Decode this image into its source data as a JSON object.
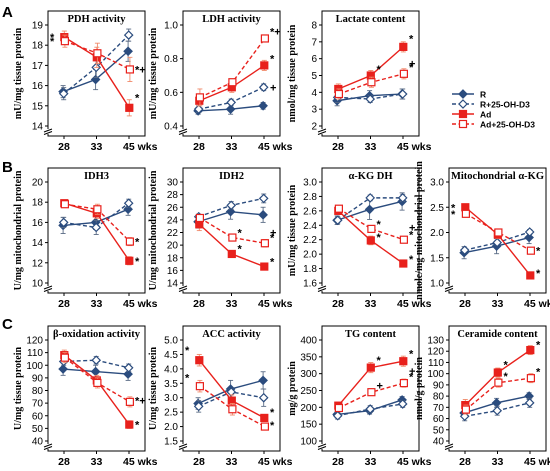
{
  "section_labels": [
    "A",
    "B",
    "C"
  ],
  "legend": {
    "entries": [
      {
        "label": "R",
        "color": "#2b4c7e",
        "dash": false,
        "marker": "diamond",
        "filled": true
      },
      {
        "label": "R+25-OH-D3",
        "color": "#2b4c7e",
        "dash": true,
        "marker": "diamond",
        "filled": false
      },
      {
        "label": "Ad",
        "color": "#e8211c",
        "dash": false,
        "marker": "square",
        "filled": true
      },
      {
        "label": "Ad+25-OH-D3",
        "color": "#e8211c",
        "dash": true,
        "marker": "square",
        "filled": false
      }
    ]
  },
  "chart_data": [
    {
      "type": "line",
      "title": "PDH activity",
      "ylabel": "mU/mg tissue protein",
      "x": [
        "28",
        "33",
        "45 wks"
      ],
      "ylim": [
        14,
        19
      ],
      "yticks": [
        14,
        15,
        16,
        17,
        18,
        19
      ],
      "axis_break": true,
      "series": [
        {
          "name": "R",
          "values": [
            15.7,
            16.3,
            17.7
          ],
          "err": [
            0.3,
            0.5,
            0.5
          ]
        },
        {
          "name": "R+25-OH-D3",
          "values": [
            15.6,
            16.9,
            18.5
          ],
          "err": [
            0.3,
            0.5,
            0.3
          ]
        },
        {
          "name": "Ad",
          "values": [
            18.4,
            17.4,
            14.9
          ],
          "err": [
            0.3,
            0.5,
            0.4
          ]
        },
        {
          "name": "Ad+25-OH-D3",
          "values": [
            18.2,
            17.6,
            16.8
          ],
          "err": [
            0.3,
            0.5,
            0.6
          ]
        }
      ],
      "annotations": [
        {
          "text": "*",
          "x": 0,
          "y": 18.4
        },
        {
          "text": "*",
          "x": 0,
          "y": 18.2
        },
        {
          "text": "*+",
          "x": 2,
          "y": 16.8
        },
        {
          "text": "*",
          "x": 2,
          "y": 15.4
        }
      ]
    },
    {
      "type": "line",
      "title": "LDH activity",
      "ylabel": "mU/mg tissue protein",
      "x": [
        "28",
        "33",
        "45 wks"
      ],
      "ylim": [
        0.4,
        1.0
      ],
      "yticks": [
        0.4,
        0.6,
        0.8,
        1.0
      ],
      "axis_break": true,
      "series": [
        {
          "name": "R",
          "values": [
            0.49,
            0.5,
            0.52
          ],
          "err": [
            0.02,
            0.03,
            0.02
          ]
        },
        {
          "name": "R+25-OH-D3",
          "values": [
            0.5,
            0.54,
            0.63
          ],
          "err": [
            0.02,
            0.02,
            0.02
          ]
        },
        {
          "name": "Ad",
          "values": [
            0.55,
            0.63,
            0.76
          ],
          "err": [
            0.03,
            0.03,
            0.03
          ]
        },
        {
          "name": "Ad+25-OH-D3",
          "values": [
            0.57,
            0.66,
            0.92
          ],
          "err": [
            0.05,
            0.02,
            0.02
          ]
        }
      ],
      "annotations": [
        {
          "text": "*+",
          "x": 2,
          "y": 0.96
        },
        {
          "text": "*",
          "x": 2,
          "y": 0.8
        },
        {
          "text": "+",
          "x": 2,
          "y": 0.63
        }
      ]
    },
    {
      "type": "line",
      "title": "Lactate content",
      "ylabel": "nmol/mg tissue protein",
      "x": [
        "28",
        "33",
        "45 wks"
      ],
      "ylim": [
        2,
        8
      ],
      "yticks": [
        2,
        3,
        4,
        5,
        6,
        7,
        8
      ],
      "axis_break": true,
      "series": [
        {
          "name": "R",
          "values": [
            3.5,
            3.8,
            3.9
          ],
          "err": [
            0.3,
            0.3,
            0.3
          ]
        },
        {
          "name": "R+25-OH-D3",
          "values": [
            3.7,
            3.6,
            3.9
          ],
          "err": [
            0.3,
            0.2,
            0.3
          ]
        },
        {
          "name": "Ad",
          "values": [
            4.2,
            5.0,
            6.7
          ],
          "err": [
            0.3,
            0.3,
            0.3
          ]
        },
        {
          "name": "Ad+25-OH-D3",
          "values": [
            3.9,
            4.6,
            5.1
          ],
          "err": [
            0.3,
            0.3,
            0.3
          ]
        }
      ],
      "annotations": [
        {
          "text": "*",
          "x": 1,
          "y": 5.4
        },
        {
          "text": "*",
          "x": 2,
          "y": 7.2
        },
        {
          "text": "+",
          "x": 2,
          "y": 5.7
        },
        {
          "text": "*",
          "x": 2,
          "y": 5.5
        }
      ]
    },
    {
      "type": "line",
      "title": "IDH3",
      "ylabel": "U/mg mitochondrial protein",
      "x": [
        "28",
        "33",
        "45 wks"
      ],
      "ylim": [
        10,
        20
      ],
      "yticks": [
        10,
        12,
        14,
        16,
        18,
        20
      ],
      "axis_break": true,
      "series": [
        {
          "name": "R",
          "values": [
            15.7,
            16.0,
            17.3
          ],
          "err": [
            0.8,
            0.7,
            0.6
          ]
        },
        {
          "name": "R+25-OH-D3",
          "values": [
            16.0,
            15.5,
            17.9
          ],
          "err": [
            0.5,
            0.7,
            0.4
          ]
        },
        {
          "name": "Ad",
          "values": [
            17.9,
            16.9,
            12.2
          ],
          "err": [
            0.3,
            0.5,
            0.4
          ]
        },
        {
          "name": "Ad+25-OH-D3",
          "values": [
            17.8,
            17.3,
            14.1
          ],
          "err": [
            0.3,
            0.5,
            0.4
          ]
        }
      ],
      "annotations": [
        {
          "text": "*",
          "x": 2,
          "y": 14.1
        },
        {
          "text": "*",
          "x": 2,
          "y": 12.2
        }
      ]
    },
    {
      "type": "line",
      "title": "IDH2",
      "ylabel": "U/mg mitochondrial protein",
      "x": [
        "28",
        "33",
        "45 wks"
      ],
      "ylim": [
        14,
        30
      ],
      "yticks": [
        14,
        16,
        18,
        20,
        22,
        24,
        26,
        28,
        30
      ],
      "axis_break": true,
      "series": [
        {
          "name": "R",
          "values": [
            23.7,
            25.3,
            24.8
          ],
          "err": [
            1.0,
            1.2,
            1.2
          ]
        },
        {
          "name": "R+25-OH-D3",
          "values": [
            24.5,
            26.3,
            27.4
          ],
          "err": [
            0.4,
            0.6,
            0.7
          ]
        },
        {
          "name": "Ad",
          "values": [
            23.3,
            18.6,
            16.6
          ],
          "err": [
            1.0,
            0.4,
            0.4
          ]
        },
        {
          "name": "Ad+25-OH-D3",
          "values": [
            24.3,
            21.2,
            20.3
          ],
          "err": [
            0.4,
            0.5,
            0.6
          ]
        }
      ],
      "annotations": [
        {
          "text": "*",
          "x": 1,
          "y": 22.0
        },
        {
          "text": "*",
          "x": 1,
          "y": 19.5
        },
        {
          "text": "+",
          "x": 2,
          "y": 22.0
        },
        {
          "text": "*",
          "x": 2,
          "y": 21.2
        },
        {
          "text": "*",
          "x": 2,
          "y": 17.4
        }
      ]
    },
    {
      "type": "line",
      "title": "α-KG DH",
      "ylabel": "mU/mg tissue protein",
      "x": [
        "28",
        "33",
        "45 wks"
      ],
      "ylim": [
        1.6,
        3.0
      ],
      "yticks": [
        1.6,
        1.8,
        2.0,
        2.2,
        2.4,
        2.6,
        2.8,
        3.0
      ],
      "axis_break": true,
      "series": [
        {
          "name": "R",
          "values": [
            2.47,
            2.62,
            2.73
          ],
          "err": [
            0.06,
            0.14,
            0.12
          ]
        },
        {
          "name": "R+25-OH-D3",
          "values": [
            2.47,
            2.78,
            2.78
          ],
          "err": [
            0.05,
            0.04,
            0.05
          ]
        },
        {
          "name": "Ad",
          "values": [
            2.6,
            2.19,
            1.87
          ],
          "err": [
            0.05,
            0.06,
            0.04
          ]
        },
        {
          "name": "Ad+25-OH-D3",
          "values": [
            2.63,
            2.35,
            2.2
          ],
          "err": [
            0.04,
            0.04,
            0.04
          ]
        }
      ],
      "annotations": [
        {
          "text": "*",
          "x": 1,
          "y": 2.42
        },
        {
          "text": "*",
          "x": 1,
          "y": 2.24
        },
        {
          "text": "+",
          "x": 2,
          "y": 2.37
        },
        {
          "text": "*",
          "x": 2,
          "y": 2.27
        },
        {
          "text": "*",
          "x": 2,
          "y": 1.93
        }
      ]
    },
    {
      "type": "line",
      "title": "Mitochondrial α-KG",
      "ylabel": "nmole/mg mitochondrial protein",
      "x": [
        "28",
        "33",
        "45 wks"
      ],
      "ylim": [
        1.0,
        3.0
      ],
      "yticks": [
        1.0,
        1.5,
        2.0,
        2.5,
        3.0
      ],
      "axis_break": true,
      "series": [
        {
          "name": "R",
          "values": [
            1.6,
            1.73,
            1.9
          ],
          "err": [
            0.12,
            0.15,
            0.12
          ]
        },
        {
          "name": "R+25-OH-D3",
          "values": [
            1.65,
            1.8,
            2.01
          ],
          "err": [
            0.05,
            0.05,
            0.05
          ]
        },
        {
          "name": "Ad",
          "values": [
            2.5,
            1.96,
            1.15
          ],
          "err": [
            0.05,
            0.08,
            0.05
          ]
        },
        {
          "name": "Ad+25-OH-D3",
          "values": [
            2.37,
            2.0,
            1.64
          ],
          "err": [
            0.05,
            0.05,
            0.05
          ]
        }
      ],
      "annotations": [
        {
          "text": "*",
          "x": 0,
          "y": 2.5
        },
        {
          "text": "*",
          "x": 0,
          "y": 2.37
        },
        {
          "text": "*",
          "x": 2,
          "y": 1.64
        },
        {
          "text": "*",
          "x": 2,
          "y": 1.2
        }
      ]
    },
    {
      "type": "line",
      "title": "β-oxidation activity",
      "ylabel": "U/mg tissue protein",
      "x": [
        "28",
        "33",
        "45 wks"
      ],
      "ylim": [
        40,
        120
      ],
      "yticks": [
        40,
        50,
        60,
        70,
        80,
        90,
        100,
        110,
        120
      ],
      "axis_break": true,
      "series": [
        {
          "name": "R",
          "values": [
            97,
            95,
            93
          ],
          "err": [
            5,
            5,
            5
          ]
        },
        {
          "name": "R+25-OH-D3",
          "values": [
            103,
            104,
            98
          ],
          "err": [
            3,
            3,
            3
          ]
        },
        {
          "name": "Ad",
          "values": [
            108,
            88,
            53
          ],
          "err": [
            4,
            4,
            3
          ]
        },
        {
          "name": "Ad+25-OH-D3",
          "values": [
            106,
            86,
            71
          ],
          "err": [
            4,
            4,
            4
          ]
        }
      ],
      "annotations": [
        {
          "text": "*+",
          "x": 2,
          "y": 72
        },
        {
          "text": "*",
          "x": 2,
          "y": 53
        }
      ]
    },
    {
      "type": "line",
      "title": "ACC activity",
      "ylabel": "U/mg tissue protein",
      "x": [
        "28",
        "33",
        "45 wks"
      ],
      "ylim": [
        1.5,
        5.0
      ],
      "yticks": [
        1.5,
        2.0,
        2.5,
        3.0,
        3.5,
        4.0,
        4.5,
        5.0
      ],
      "axis_break": true,
      "series": [
        {
          "name": "R",
          "values": [
            2.8,
            3.3,
            3.6
          ],
          "err": [
            0.2,
            0.3,
            0.3
          ]
        },
        {
          "name": "R+25-OH-D3",
          "values": [
            2.7,
            3.2,
            3.0
          ],
          "err": [
            0.2,
            0.1,
            0.3
          ]
        },
        {
          "name": "Ad",
          "values": [
            4.3,
            2.9,
            2.3
          ],
          "err": [
            0.2,
            0.2,
            0.1
          ]
        },
        {
          "name": "Ad+25-OH-D3",
          "values": [
            3.4,
            2.6,
            2.0
          ],
          "err": [
            0.2,
            0.2,
            0.1
          ]
        }
      ],
      "annotations": [
        {
          "text": "*",
          "x": 0,
          "y": 4.65
        },
        {
          "text": "*",
          "x": 0,
          "y": 3.7
        },
        {
          "text": "*",
          "x": 2,
          "y": 2.5
        },
        {
          "text": "*",
          "x": 2,
          "y": 2.05
        }
      ]
    },
    {
      "type": "line",
      "title": "TG content",
      "ylabel": "mg/g protein",
      "x": [
        "28",
        "33",
        "45 wks"
      ],
      "ylim": [
        100,
        400
      ],
      "yticks": [
        100,
        150,
        200,
        250,
        300,
        350,
        400
      ],
      "axis_break": true,
      "series": [
        {
          "name": "R",
          "values": [
            179,
            190,
            222
          ],
          "err": [
            10,
            10,
            10
          ]
        },
        {
          "name": "R+25-OH-D3",
          "values": [
            175,
            195,
            210
          ],
          "err": [
            10,
            10,
            10
          ]
        },
        {
          "name": "Ad",
          "values": [
            205,
            318,
            337
          ],
          "err": [
            10,
            15,
            15
          ]
        },
        {
          "name": "Ad+25-OH-D3",
          "values": [
            198,
            245,
            272
          ],
          "err": [
            10,
            10,
            12
          ]
        }
      ],
      "annotations": [
        {
          "text": "*",
          "x": 1,
          "y": 340
        },
        {
          "text": "+",
          "x": 1,
          "y": 265
        },
        {
          "text": "*",
          "x": 2,
          "y": 360
        },
        {
          "text": "+",
          "x": 2,
          "y": 308
        },
        {
          "text": "*",
          "x": 2,
          "y": 292
        }
      ]
    },
    {
      "type": "line",
      "title": "Ceramide content",
      "ylabel": "nmol/g protein",
      "x": [
        "28",
        "33",
        "45 wks"
      ],
      "ylim": [
        40,
        130
      ],
      "yticks": [
        40,
        50,
        60,
        70,
        80,
        90,
        100,
        110,
        120,
        130
      ],
      "axis_break": true,
      "series": [
        {
          "name": "R",
          "values": [
            65,
            74,
            80
          ],
          "err": [
            4,
            4,
            3
          ]
        },
        {
          "name": "R+25-OH-D3",
          "values": [
            62,
            67,
            74
          ],
          "err": [
            4,
            4,
            4
          ]
        },
        {
          "name": "Ad",
          "values": [
            72,
            101,
            121
          ],
          "err": [
            5,
            4,
            4
          ]
        },
        {
          "name": "Ad+25-OH-D3",
          "values": [
            68,
            92,
            96
          ],
          "err": [
            4,
            4,
            4
          ]
        }
      ],
      "annotations": [
        {
          "text": "*",
          "x": 1,
          "y": 108
        },
        {
          "text": "*",
          "x": 1,
          "y": 98
        },
        {
          "text": "*",
          "x": 2,
          "y": 126
        },
        {
          "text": "*",
          "x": 2,
          "y": 102
        }
      ]
    }
  ]
}
